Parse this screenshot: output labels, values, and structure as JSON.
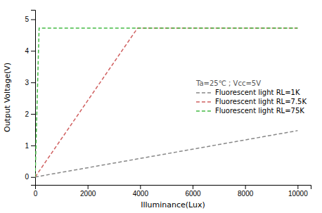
{
  "chart_data": {
    "type": "line",
    "xlabel": "Illuminance(Lux)",
    "ylabel": "Output Voltage(V)",
    "annotation": "Ta=25℃ ; Vcc=5V",
    "xlim": [
      0,
      10500
    ],
    "ylim": [
      -0.25,
      5.3
    ],
    "xticks": [
      0,
      2000,
      4000,
      6000,
      8000,
      10000
    ],
    "yticks": [
      0,
      1,
      2,
      3,
      4,
      5
    ],
    "grid": false,
    "legend": "right",
    "series": [
      {
        "name": "Fluorescent light RL=1K",
        "color": "#888888",
        "line_style": "dashed",
        "x": [
          0,
          10000
        ],
        "values": [
          0,
          1.47
        ]
      },
      {
        "name": "Fluorescent light RL=7.5K",
        "color": "#d06060",
        "line_style": "dashed",
        "x": [
          0,
          3900,
          10000
        ],
        "values": [
          0,
          4.72,
          4.72
        ]
      },
      {
        "name": "Fluorescent light RL=75K",
        "color": "#44bb44",
        "line_style": "dashed",
        "x": [
          0,
          150,
          10000
        ],
        "values": [
          0,
          4.72,
          4.72
        ]
      }
    ]
  }
}
